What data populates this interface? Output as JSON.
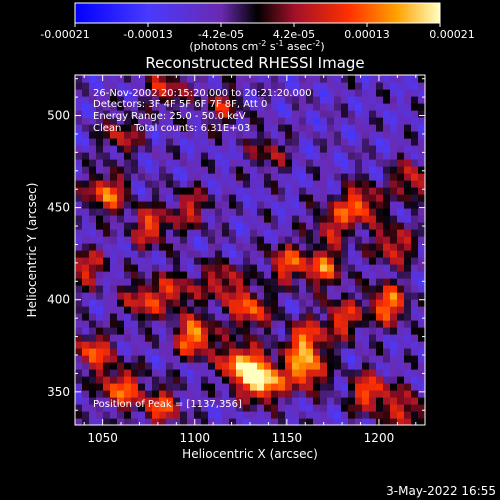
{
  "chart_data": {
    "type": "heatmap",
    "title": "Reconstructed RHESSI Image",
    "xlabel": "Heliocentric X (arcsec)",
    "ylabel": "Heliocentric Y (arcsec)",
    "xlim": [
      1035,
      1225
    ],
    "ylim": [
      332,
      522
    ],
    "xticks": [
      1050,
      1100,
      1150,
      1200
    ],
    "yticks": [
      350,
      400,
      450,
      500
    ],
    "colorbar": {
      "min": -0.00021,
      "max": 0.00021,
      "tick_labels": [
        "-0.00021",
        "-0.00013",
        "-4.2e-05",
        "4.2e-05",
        "0.00013",
        "0.00021"
      ],
      "unit_label_parts": [
        "(photons cm",
        "-2",
        " s",
        "-1",
        " asec",
        "-2",
        ")"
      ]
    },
    "annotations": {
      "time_range": "26-Nov-2002 20:15:20.000 to 20:21:20.000",
      "detectors": "Detectors: 3F 4F 5F 6F 7F 8F, Att 0",
      "energy_range": "Energy Range: 25.0 - 50.0 keV",
      "method_counts": "Clean    Total counts: 6.31E+03",
      "peak": "Position of Peak = [1137,356]"
    },
    "peak_position": [
      1137,
      356
    ],
    "hot_regions_description_values": [
      {
        "x": 1137,
        "y": 356,
        "value": 0.00021
      },
      {
        "x": 1125,
        "y": 365,
        "value": 0.00018
      },
      {
        "x": 1100,
        "y": 380,
        "value": 0.00016
      },
      {
        "x": 1160,
        "y": 362,
        "value": 0.00015
      },
      {
        "x": 1205,
        "y": 398,
        "value": 0.00014
      },
      {
        "x": 1195,
        "y": 350,
        "value": 0.00012
      },
      {
        "x": 1060,
        "y": 352,
        "value": 0.00013
      },
      {
        "x": 1045,
        "y": 372,
        "value": 0.00011
      },
      {
        "x": 1082,
        "y": 342,
        "value": 0.0001
      },
      {
        "x": 1052,
        "y": 458,
        "value": 0.00013
      },
      {
        "x": 1076,
        "y": 440,
        "value": 0.0001
      },
      {
        "x": 1130,
        "y": 395,
        "value": 0.00012
      },
      {
        "x": 1150,
        "y": 420,
        "value": 0.0001
      },
      {
        "x": 1170,
        "y": 418,
        "value": 0.00011
      },
      {
        "x": 1190,
        "y": 452,
        "value": 0.00012
      },
      {
        "x": 1218,
        "y": 465,
        "value": 8e-05
      },
      {
        "x": 1208,
        "y": 430,
        "value": 9e-05
      },
      {
        "x": 1175,
        "y": 442,
        "value": 7e-05
      },
      {
        "x": 1115,
        "y": 410,
        "value": 8e-05
      },
      {
        "x": 1090,
        "y": 405,
        "value": 7e-05
      },
      {
        "x": 1072,
        "y": 400,
        "value": 9e-05
      },
      {
        "x": 1098,
        "y": 450,
        "value": 6e-05
      },
      {
        "x": 1060,
        "y": 490,
        "value": 6e-05
      },
      {
        "x": 1085,
        "y": 515,
        "value": 7e-05
      },
      {
        "x": 1115,
        "y": 505,
        "value": 5e-05
      },
      {
        "x": 1160,
        "y": 378,
        "value": 0.00012
      },
      {
        "x": 1180,
        "y": 390,
        "value": 9e-05
      },
      {
        "x": 1040,
        "y": 418,
        "value": 8e-05
      },
      {
        "x": 1140,
        "y": 480,
        "value": 4e-05
      },
      {
        "x": 1215,
        "y": 340,
        "value": 8e-05
      }
    ]
  },
  "footer": {
    "date": "3-May-2022 16:55"
  }
}
